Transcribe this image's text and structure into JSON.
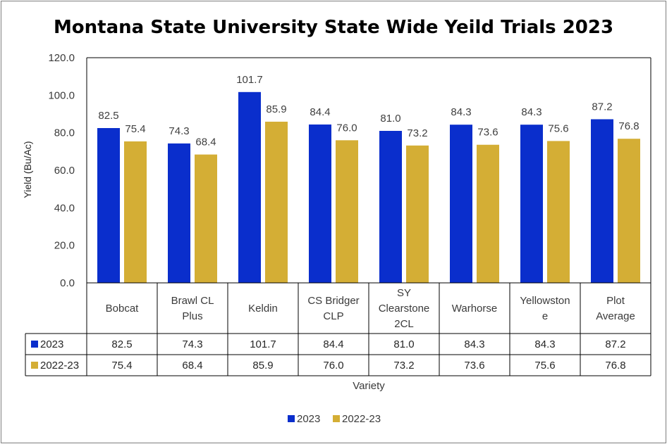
{
  "chart_data": {
    "type": "bar",
    "title": "Montana State University State Wide Yeild Trials 2023",
    "xlabel": "Variety",
    "ylabel": "Yield (Bu/Ac)",
    "ylim": [
      0,
      120
    ],
    "yticks": [
      "0.0",
      "20.0",
      "40.0",
      "60.0",
      "80.0",
      "100.0",
      "120.0"
    ],
    "grid": false,
    "legend_position": "bottom",
    "categories": [
      [
        "Bobcat"
      ],
      [
        "Brawl CL",
        "Plus"
      ],
      [
        "Keldin"
      ],
      [
        "CS Bridger",
        "CLP"
      ],
      [
        "SY",
        "Clearstone",
        "2CL"
      ],
      [
        "Warhorse"
      ],
      [
        "Yellowston",
        "e"
      ],
      [
        "Plot",
        "Average"
      ]
    ],
    "series": [
      {
        "name": "2023",
        "color": "#0a2ecc",
        "values": [
          82.5,
          74.3,
          101.7,
          84.4,
          81.0,
          84.3,
          84.3,
          87.2
        ],
        "labels": [
          "82.5",
          "74.3",
          "101.7",
          "84.4",
          "81.0",
          "84.3",
          "84.3",
          "87.2"
        ]
      },
      {
        "name": "2022-23",
        "color": "#d4ae35",
        "values": [
          75.4,
          68.4,
          85.9,
          76.0,
          73.2,
          73.6,
          75.6,
          76.8
        ],
        "labels": [
          "75.4",
          "68.4",
          "85.9",
          "76.0",
          "73.2",
          "73.6",
          "75.6",
          "76.8"
        ]
      }
    ]
  }
}
